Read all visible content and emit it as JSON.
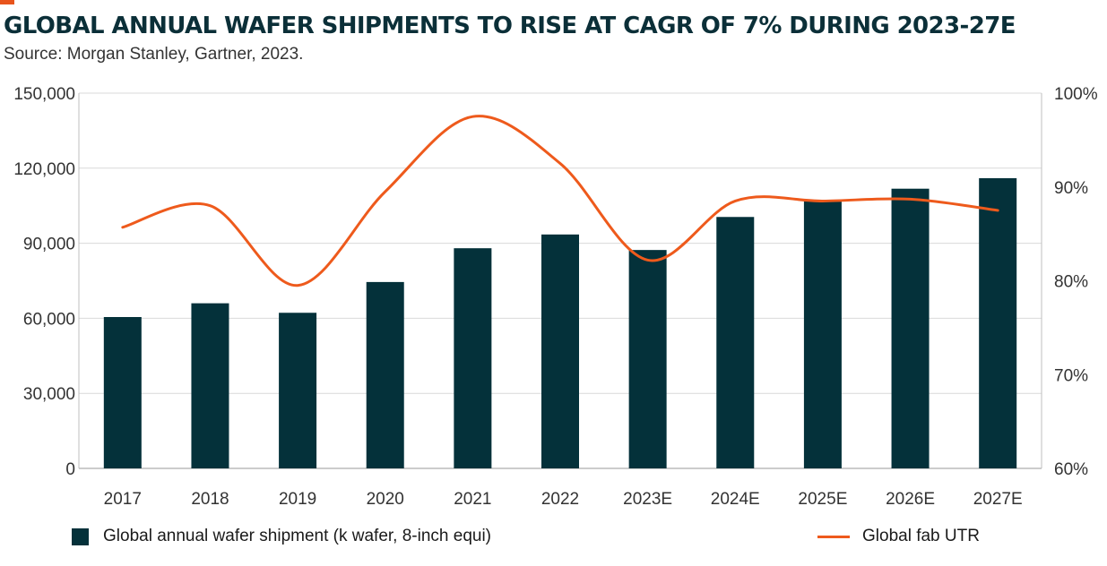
{
  "header": {
    "title": "GLOBAL ANNUAL WAFER SHIPMENTS TO RISE AT CAGR OF 7% DURING 2023-27E",
    "subtitle": "Source: Morgan Stanley, Gartner, 2023."
  },
  "colors": {
    "bar": "#04313a",
    "line": "#ee5a1c",
    "accent": "#e8541c",
    "grid": "#d9d9d9"
  },
  "chart_data": {
    "type": "bar",
    "title": "GLOBAL ANNUAL WAFER SHIPMENTS TO RISE AT CAGR OF 7% DURING 2023-27E",
    "subtitle": "Source: Morgan Stanley, Gartner, 2023.",
    "categories": [
      "2017",
      "2018",
      "2019",
      "2020",
      "2021",
      "2022",
      "2023E",
      "2024E",
      "2025E",
      "2026E",
      "2027E"
    ],
    "series": [
      {
        "name": "Global annual wafer shipment (k wafer, 8-inch equi)",
        "type": "bar",
        "axis": "left",
        "values": [
          60500,
          66000,
          62200,
          74500,
          88000,
          93500,
          87300,
          100500,
          107300,
          111800,
          116000
        ]
      },
      {
        "name": "Global fab UTR",
        "type": "line",
        "axis": "right",
        "unit": "%",
        "values": [
          85.7,
          88.0,
          79.5,
          89.5,
          97.5,
          92.5,
          82.2,
          88.5,
          88.5,
          88.7,
          87.5
        ]
      }
    ],
    "y_left": {
      "min": 0,
      "max": 150000,
      "ticks": [
        "0",
        "30,000",
        "60,000",
        "90,000",
        "120,000",
        "150,000"
      ],
      "tick_values": [
        0,
        30000,
        60000,
        90000,
        120000,
        150000
      ]
    },
    "y_right": {
      "min": 60,
      "max": 100,
      "ticks": [
        "60%",
        "70%",
        "80%",
        "90%",
        "100%"
      ],
      "tick_values": [
        60,
        70,
        80,
        90,
        100
      ]
    },
    "grid": true,
    "legend_position": "bottom"
  }
}
